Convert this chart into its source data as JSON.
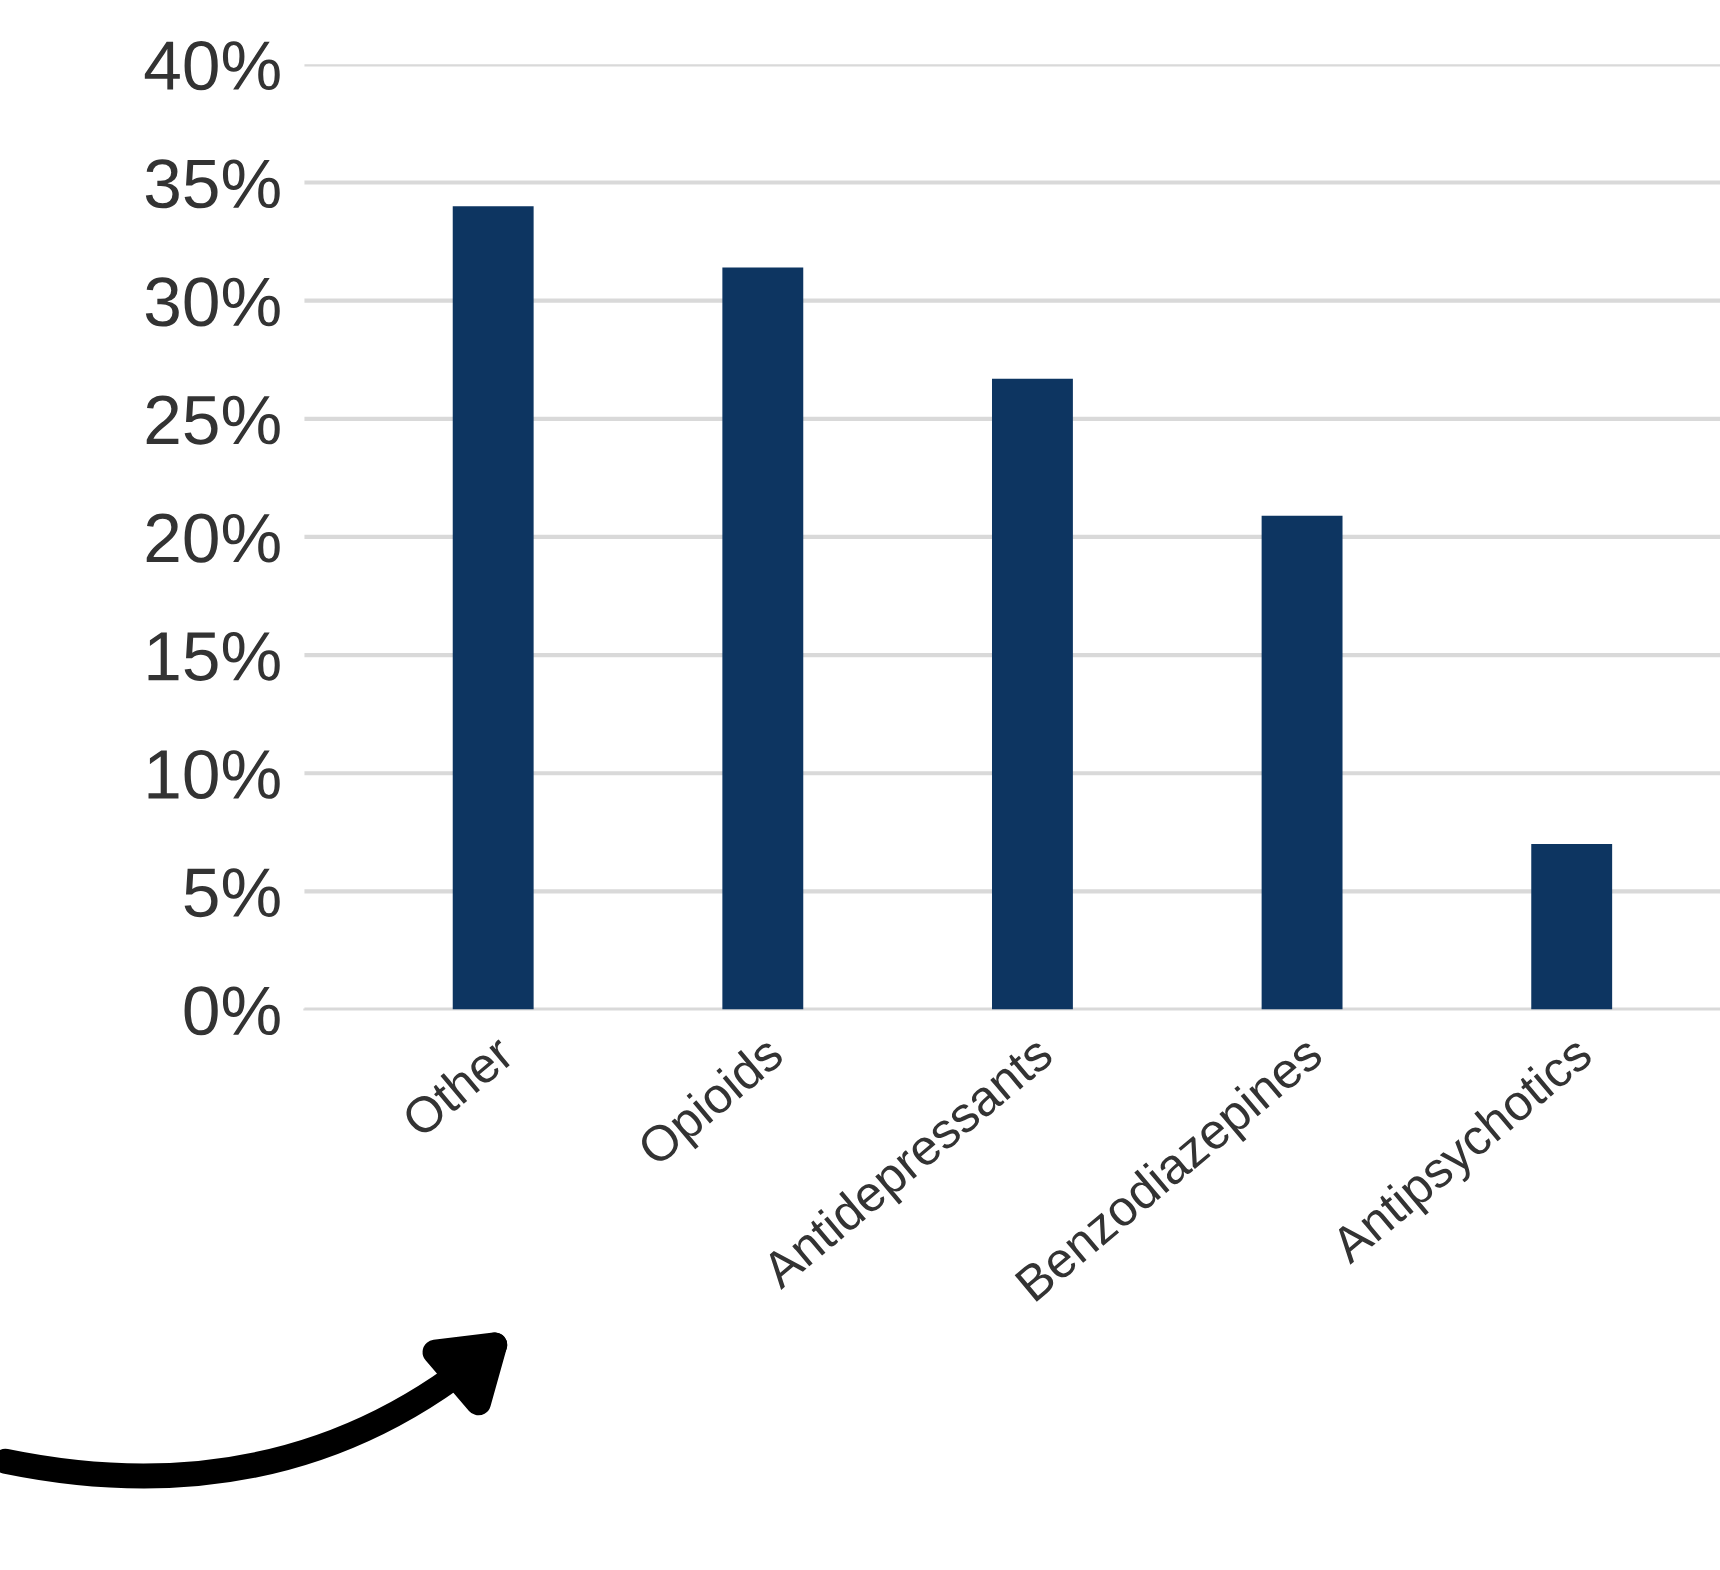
{
  "chart_data": {
    "type": "bar",
    "categories": [
      "Other",
      "Opioids",
      "Antidepressants",
      "Benzodiazepines",
      "Antipsychotics"
    ],
    "values": [
      34,
      31.4,
      26.7,
      20.9,
      7
    ],
    "color": "#0d3561",
    "ylim": [
      0,
      40
    ],
    "yticks": [
      {
        "value": 0,
        "label": "0%"
      },
      {
        "value": 5,
        "label": "5%"
      },
      {
        "value": 10,
        "label": "10%"
      },
      {
        "value": 15,
        "label": "15%"
      },
      {
        "value": 20,
        "label": "20%"
      },
      {
        "value": 25,
        "label": "25%"
      },
      {
        "value": 30,
        "label": "30%"
      },
      {
        "value": 35,
        "label": "35%"
      },
      {
        "value": 40,
        "label": "40%"
      }
    ],
    "grid": "y"
  }
}
